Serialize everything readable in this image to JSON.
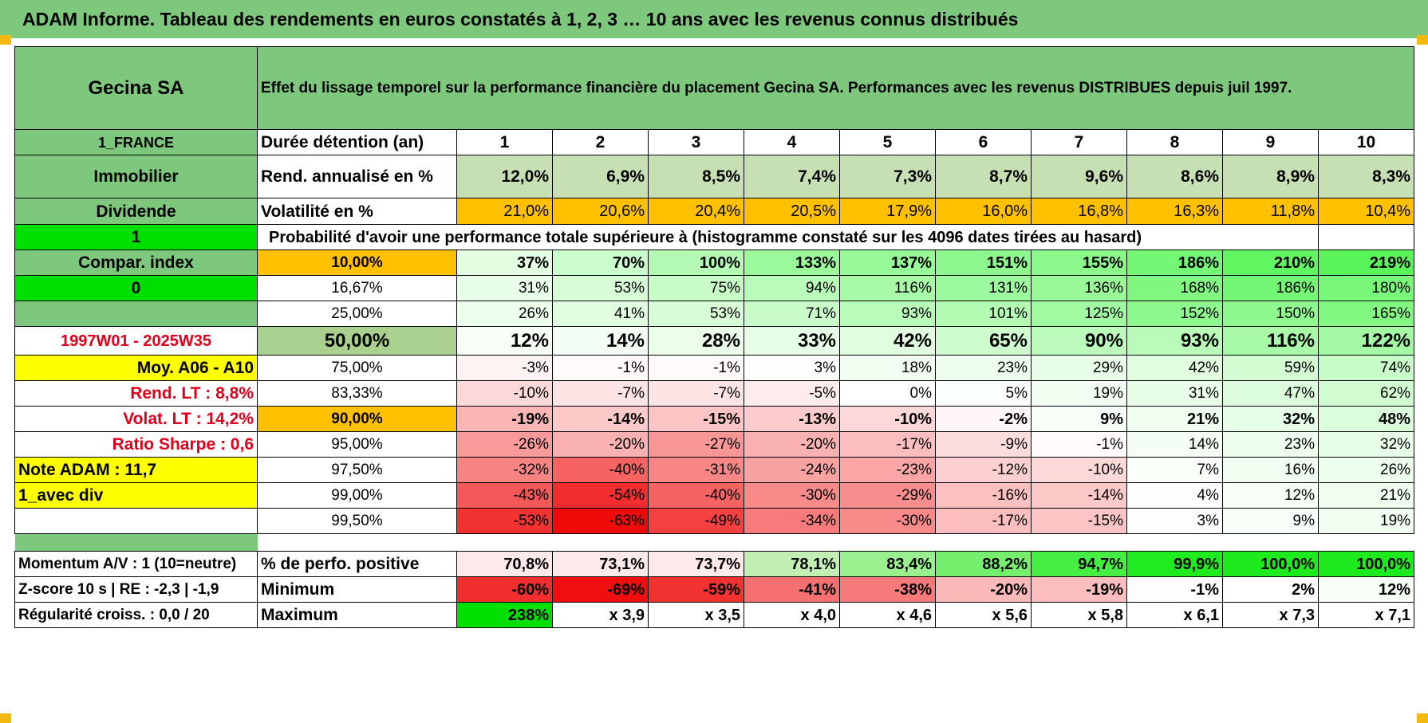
{
  "page_title": "ADAM Informe. Tableau des rendements en euros constatés à 1, 2, 3 … 10 ans avec les revenus connus distribués",
  "header": {
    "name": "Gecina SA",
    "description": "Effet du lissage temporel sur la performance financière du placement Gecina SA. Performances avec les revenus DISTRIBUES depuis juil 1997."
  },
  "left_labels": {
    "country": "1_FRANCE",
    "sector": "Immobilier",
    "income": "Dividende",
    "one": "1",
    "compar": "Compar. index",
    "zero": "0",
    "period": "1997W01 - 2025W35",
    "moy": "Moy. A06 - A10",
    "rend_lt": "Rend. LT :   8,8%",
    "volat_lt": "Volat. LT :   14,2%",
    "sharpe": "Ratio Sharpe :    0,6",
    "note": "Note ADAM : 11,7",
    "avec_div": "1_avec div",
    "momentum": "Momentum A/V : 1 (10=neutre)",
    "zscore": "Z-score 10 s | RE : -2,3 | -1,9",
    "regularite": "Régularité croiss. : 0,0 / 20"
  },
  "rows": {
    "duree": {
      "label": "Durée détention (an)",
      "values": [
        "1",
        "2",
        "3",
        "4",
        "5",
        "6",
        "7",
        "8",
        "9",
        "10"
      ]
    },
    "rend": {
      "label": "Rend. annualisé en %",
      "values": [
        "12,0%",
        "6,9%",
        "8,5%",
        "7,4%",
        "7,3%",
        "8,7%",
        "9,6%",
        "8,6%",
        "8,9%",
        "8,3%"
      ]
    },
    "vol": {
      "label": "Volatilité en %",
      "values": [
        "21,0%",
        "20,6%",
        "20,4%",
        "20,5%",
        "17,9%",
        "16,0%",
        "16,8%",
        "16,3%",
        "11,8%",
        "10,4%"
      ]
    },
    "prob_title": "Probabilité d'avoir une performance totale supérieure à (histogramme constaté sur les 4096 dates tirées au hasard)",
    "quantiles": [
      {
        "q": "10,00%",
        "values": [
          "37%",
          "70%",
          "100%",
          "133%",
          "137%",
          "151%",
          "155%",
          "186%",
          "210%",
          "219%"
        ]
      },
      {
        "q": "16,67%",
        "values": [
          "31%",
          "53%",
          "75%",
          "94%",
          "116%",
          "131%",
          "136%",
          "168%",
          "186%",
          "180%"
        ]
      },
      {
        "q": "25,00%",
        "values": [
          "26%",
          "41%",
          "53%",
          "71%",
          "93%",
          "101%",
          "125%",
          "152%",
          "150%",
          "165%"
        ]
      },
      {
        "q": "50,00%",
        "values": [
          "12%",
          "14%",
          "28%",
          "33%",
          "42%",
          "65%",
          "90%",
          "93%",
          "116%",
          "122%"
        ]
      },
      {
        "q": "75,00%",
        "values": [
          "-3%",
          "-1%",
          "-1%",
          "3%",
          "18%",
          "23%",
          "29%",
          "42%",
          "59%",
          "74%"
        ]
      },
      {
        "q": "83,33%",
        "values": [
          "-10%",
          "-7%",
          "-7%",
          "-5%",
          "0%",
          "5%",
          "19%",
          "31%",
          "47%",
          "62%"
        ]
      },
      {
        "q": "90,00%",
        "values": [
          "-19%",
          "-14%",
          "-15%",
          "-13%",
          "-10%",
          "-2%",
          "9%",
          "21%",
          "32%",
          "48%"
        ]
      },
      {
        "q": "95,00%",
        "values": [
          "-26%",
          "-20%",
          "-27%",
          "-20%",
          "-17%",
          "-9%",
          "-1%",
          "14%",
          "23%",
          "32%"
        ]
      },
      {
        "q": "97,50%",
        "values": [
          "-32%",
          "-40%",
          "-31%",
          "-24%",
          "-23%",
          "-12%",
          "-10%",
          "7%",
          "16%",
          "26%"
        ]
      },
      {
        "q": "99,00%",
        "values": [
          "-43%",
          "-54%",
          "-40%",
          "-30%",
          "-29%",
          "-16%",
          "-14%",
          "4%",
          "12%",
          "21%"
        ]
      },
      {
        "q": "99,50%",
        "values": [
          "-53%",
          "-63%",
          "-49%",
          "-34%",
          "-30%",
          "-17%",
          "-15%",
          "3%",
          "9%",
          "19%"
        ]
      }
    ],
    "positive": {
      "label": "% de perfo. positive",
      "values": [
        "70,8%",
        "73,1%",
        "73,7%",
        "78,1%",
        "83,4%",
        "88,2%",
        "94,7%",
        "99,9%",
        "100,0%",
        "100,0%"
      ]
    },
    "minimum": {
      "label": "Minimum",
      "values": [
        "-60%",
        "-69%",
        "-59%",
        "-41%",
        "-38%",
        "-20%",
        "-19%",
        "-1%",
        "2%",
        "12%"
      ]
    },
    "maximum": {
      "label": "Maximum",
      "values": [
        "238%",
        "x 3,9",
        "x 3,5",
        "x 4,0",
        "x 4,6",
        "x 5,6",
        "x 5,8",
        "x 6,1",
        "x 7,3",
        "x 7,1"
      ]
    }
  },
  "colors": {
    "header_green": "#7ec87e",
    "bright_green": "#00e000",
    "orange": "#ffc000",
    "yellow": "#ffff00",
    "red_text": "#e0001b"
  }
}
